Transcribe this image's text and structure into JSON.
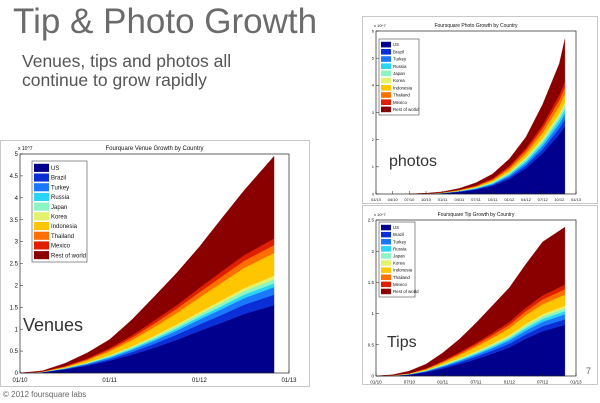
{
  "slide": {
    "title": "Tip & Photo Growth",
    "subtitle": "Venues, tips and photos all continue to grow rapidly",
    "page_number": "7",
    "copyright": "© 2012 foursquare labs"
  },
  "labels": {
    "venues": "Venues",
    "photos": "photos",
    "tips": "Tips"
  },
  "series_colors": [
    "#00008c",
    "#0a2fd6",
    "#1a78ff",
    "#2ad4f5",
    "#8cf5c4",
    "#e2f26a",
    "#ffc600",
    "#ff6f00",
    "#e01e00",
    "#8a0000"
  ],
  "chart_data": [
    {
      "type": "area",
      "stacked": true,
      "title": "Fourquare Venue Growth by Country",
      "exponent": "x 10^7",
      "xlabel": "",
      "ylabel": "",
      "xlim": [
        0,
        36
      ],
      "ylim": [
        0,
        5
      ],
      "x_ticks": [
        {
          "x": 0,
          "label": "01/10"
        },
        {
          "x": 12,
          "label": "01/11"
        },
        {
          "x": 24,
          "label": "01/12"
        },
        {
          "x": 36,
          "label": "01/13"
        }
      ],
      "y_ticks": [
        {
          "y": 0,
          "label": "0"
        },
        {
          "y": 0.5,
          "label": "0.5"
        },
        {
          "y": 1,
          "label": "1"
        },
        {
          "y": 1.5,
          "label": "1.5"
        },
        {
          "y": 2,
          "label": "2"
        },
        {
          "y": 2.5,
          "label": "2.5"
        },
        {
          "y": 3,
          "label": "3"
        },
        {
          "y": 3.5,
          "label": "3.5"
        },
        {
          "y": 4,
          "label": "4"
        },
        {
          "y": 4.5,
          "label": "4.5"
        },
        {
          "y": 5,
          "label": "5"
        }
      ],
      "legend": "top-left",
      "x": [
        0,
        3,
        6,
        9,
        12,
        15,
        18,
        21,
        24,
        27,
        30,
        34
      ],
      "series": [
        {
          "name": "US",
          "values": [
            0,
            0.02,
            0.08,
            0.17,
            0.28,
            0.42,
            0.58,
            0.76,
            0.96,
            1.15,
            1.35,
            1.55
          ]
        },
        {
          "name": "Brazil",
          "values": [
            0,
            0.002,
            0.01,
            0.02,
            0.035,
            0.06,
            0.09,
            0.12,
            0.15,
            0.18,
            0.21,
            0.24
          ]
        },
        {
          "name": "Turkey",
          "values": [
            0,
            0.002,
            0.01,
            0.02,
            0.035,
            0.05,
            0.07,
            0.09,
            0.11,
            0.13,
            0.15,
            0.17
          ]
        },
        {
          "name": "Russia",
          "values": [
            0,
            0.001,
            0.005,
            0.01,
            0.02,
            0.03,
            0.04,
            0.05,
            0.06,
            0.07,
            0.08,
            0.09
          ]
        },
        {
          "name": "Japan",
          "values": [
            0,
            0.001,
            0.005,
            0.01,
            0.02,
            0.03,
            0.04,
            0.05,
            0.06,
            0.07,
            0.08,
            0.09
          ]
        },
        {
          "name": "Korea",
          "values": [
            0,
            0.001,
            0.005,
            0.01,
            0.015,
            0.02,
            0.03,
            0.04,
            0.05,
            0.06,
            0.07,
            0.08
          ]
        },
        {
          "name": "Indonesia",
          "values": [
            0,
            0.005,
            0.02,
            0.05,
            0.09,
            0.14,
            0.2,
            0.26,
            0.33,
            0.4,
            0.46,
            0.52
          ]
        },
        {
          "name": "Thailand",
          "values": [
            0,
            0.002,
            0.01,
            0.02,
            0.04,
            0.06,
            0.08,
            0.1,
            0.12,
            0.14,
            0.16,
            0.18
          ]
        },
        {
          "name": "Mexico",
          "values": [
            0,
            0.002,
            0.01,
            0.02,
            0.03,
            0.05,
            0.07,
            0.08,
            0.1,
            0.12,
            0.13,
            0.15
          ]
        },
        {
          "name": "Rest of world",
          "values": [
            0,
            0.015,
            0.065,
            0.13,
            0.2,
            0.36,
            0.55,
            0.74,
            0.94,
            1.21,
            1.48,
            1.88
          ]
        }
      ]
    },
    {
      "type": "area",
      "stacked": true,
      "title": "Foursquare Photo Growth by Country",
      "exponent": "x 10^7",
      "xlabel": "",
      "ylabel": "",
      "xlim": [
        0,
        36
      ],
      "ylim": [
        0,
        6
      ],
      "x_ticks": [
        {
          "x": 0,
          "label": "01/10"
        },
        {
          "x": 3,
          "label": "04/10"
        },
        {
          "x": 6,
          "label": "07/10"
        },
        {
          "x": 9,
          "label": "10/10"
        },
        {
          "x": 12,
          "label": "01/11"
        },
        {
          "x": 15,
          "label": "04/11"
        },
        {
          "x": 18,
          "label": "07/11"
        },
        {
          "x": 21,
          "label": "10/11"
        },
        {
          "x": 24,
          "label": "01/12"
        },
        {
          "x": 27,
          "label": "04/12"
        },
        {
          "x": 30,
          "label": "07/12"
        },
        {
          "x": 33,
          "label": "10/12"
        },
        {
          "x": 36,
          "label": "01/13"
        }
      ],
      "y_ticks": [
        {
          "y": 0,
          "label": "0"
        },
        {
          "y": 1,
          "label": "1"
        },
        {
          "y": 2,
          "label": "2"
        },
        {
          "y": 3,
          "label": "3"
        },
        {
          "y": 4,
          "label": "4"
        },
        {
          "y": 5,
          "label": "5"
        },
        {
          "y": 6,
          "label": "6"
        }
      ],
      "legend": "top-left",
      "x": [
        6,
        9,
        12,
        15,
        18,
        21,
        24,
        27,
        30,
        33,
        34
      ],
      "series": [
        {
          "name": "US",
          "values": [
            0,
            0.01,
            0.03,
            0.08,
            0.16,
            0.3,
            0.55,
            0.95,
            1.5,
            2.2,
            2.5
          ]
        },
        {
          "name": "Brazil",
          "values": [
            0,
            0.002,
            0.005,
            0.01,
            0.02,
            0.04,
            0.07,
            0.1,
            0.15,
            0.22,
            0.25
          ]
        },
        {
          "name": "Turkey",
          "values": [
            0,
            0.002,
            0.005,
            0.01,
            0.02,
            0.03,
            0.06,
            0.09,
            0.12,
            0.17,
            0.2
          ]
        },
        {
          "name": "Russia",
          "values": [
            0,
            0.001,
            0.003,
            0.008,
            0.015,
            0.03,
            0.05,
            0.08,
            0.11,
            0.15,
            0.17
          ]
        },
        {
          "name": "Japan",
          "values": [
            0,
            0.001,
            0.003,
            0.008,
            0.015,
            0.03,
            0.05,
            0.08,
            0.1,
            0.13,
            0.15
          ]
        },
        {
          "name": "Korea",
          "values": [
            0,
            0.001,
            0.002,
            0.005,
            0.01,
            0.02,
            0.03,
            0.05,
            0.07,
            0.09,
            0.1
          ]
        },
        {
          "name": "Indonesia",
          "values": [
            0,
            0.002,
            0.006,
            0.015,
            0.03,
            0.05,
            0.09,
            0.14,
            0.2,
            0.28,
            0.31
          ]
        },
        {
          "name": "Thailand",
          "values": [
            0,
            0.002,
            0.005,
            0.012,
            0.025,
            0.04,
            0.07,
            0.11,
            0.16,
            0.22,
            0.25
          ]
        },
        {
          "name": "Mexico",
          "values": [
            0,
            0.001,
            0.004,
            0.01,
            0.02,
            0.03,
            0.06,
            0.09,
            0.13,
            0.18,
            0.2
          ]
        },
        {
          "name": "Rest of world",
          "values": [
            0,
            0.005,
            0.02,
            0.05,
            0.1,
            0.17,
            0.26,
            0.41,
            0.76,
            1.16,
            1.57
          ]
        }
      ]
    },
    {
      "type": "area",
      "stacked": true,
      "title": "Foursquare Tip Growth by Country",
      "exponent": "x 10^7",
      "xlabel": "",
      "ylabel": "",
      "xlim": [
        0,
        36
      ],
      "ylim": [
        0,
        2.5
      ],
      "x_ticks": [
        {
          "x": 0,
          "label": "01/10"
        },
        {
          "x": 6,
          "label": "07/10"
        },
        {
          "x": 12,
          "label": "01/11"
        },
        {
          "x": 18,
          "label": "07/11"
        },
        {
          "x": 24,
          "label": "01/12"
        },
        {
          "x": 30,
          "label": "07/12"
        },
        {
          "x": 36,
          "label": "01/13"
        }
      ],
      "y_ticks": [
        {
          "y": 0,
          "label": "0"
        },
        {
          "y": 0.5,
          "label": "0.5"
        },
        {
          "y": 1,
          "label": "1"
        },
        {
          "y": 1.5,
          "label": "1.5"
        },
        {
          "y": 2,
          "label": "2"
        },
        {
          "y": 2.5,
          "label": "2.5"
        }
      ],
      "legend": "top-left",
      "x": [
        0,
        3,
        6,
        9,
        12,
        15,
        18,
        21,
        24,
        27,
        30,
        34
      ],
      "series": [
        {
          "name": "US",
          "values": [
            0,
            0.005,
            0.02,
            0.06,
            0.12,
            0.19,
            0.27,
            0.36,
            0.46,
            0.6,
            0.72,
            0.82
          ]
        },
        {
          "name": "Brazil",
          "values": [
            0,
            0.001,
            0.004,
            0.01,
            0.02,
            0.03,
            0.04,
            0.05,
            0.06,
            0.07,
            0.08,
            0.09
          ]
        },
        {
          "name": "Turkey",
          "values": [
            0,
            0.001,
            0.003,
            0.008,
            0.015,
            0.022,
            0.03,
            0.04,
            0.05,
            0.06,
            0.07,
            0.08
          ]
        },
        {
          "name": "Russia",
          "values": [
            0,
            0.001,
            0.002,
            0.005,
            0.01,
            0.015,
            0.02,
            0.025,
            0.03,
            0.04,
            0.045,
            0.05
          ]
        },
        {
          "name": "Japan",
          "values": [
            0,
            0.001,
            0.002,
            0.005,
            0.01,
            0.015,
            0.02,
            0.025,
            0.03,
            0.035,
            0.04,
            0.045
          ]
        },
        {
          "name": "Korea",
          "values": [
            0,
            0.001,
            0.002,
            0.004,
            0.008,
            0.012,
            0.016,
            0.02,
            0.025,
            0.03,
            0.035,
            0.04
          ]
        },
        {
          "name": "Indonesia",
          "values": [
            0,
            0.002,
            0.006,
            0.015,
            0.03,
            0.05,
            0.07,
            0.09,
            0.11,
            0.14,
            0.16,
            0.18
          ]
        },
        {
          "name": "Thailand",
          "values": [
            0,
            0.001,
            0.003,
            0.008,
            0.015,
            0.025,
            0.035,
            0.045,
            0.055,
            0.065,
            0.075,
            0.085
          ]
        },
        {
          "name": "Mexico",
          "values": [
            0,
            0.001,
            0.003,
            0.006,
            0.012,
            0.02,
            0.028,
            0.036,
            0.045,
            0.055,
            0.065,
            0.075
          ]
        },
        {
          "name": "Rest of world",
          "values": [
            0,
            0.007,
            0.035,
            0.07,
            0.13,
            0.21,
            0.32,
            0.44,
            0.55,
            0.7,
            0.86,
            0.92
          ]
        }
      ]
    }
  ]
}
